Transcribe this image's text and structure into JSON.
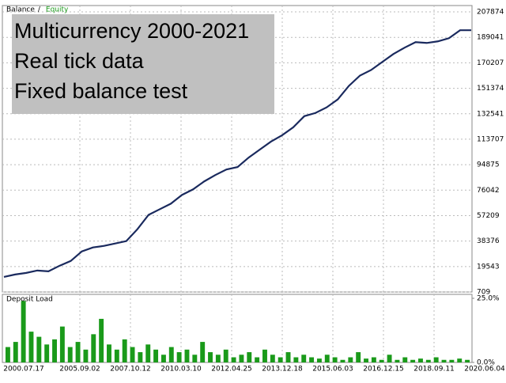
{
  "chart_data": [
    {
      "type": "line",
      "legend": [
        {
          "name": "Balance",
          "color": "#000000"
        },
        {
          "name": "Equity",
          "color": "#1a9a1a"
        }
      ],
      "legend_separator": "/",
      "annotation": [
        "Multicurrency 2000-2021",
        "Real tick data",
        "Fixed balance test"
      ],
      "series": [
        {
          "name": "Balance",
          "color": "#1a2a5e",
          "values": [
            11891,
            13656,
            14833,
            16599,
            16010,
            20130,
            23661,
            30723,
            33665,
            34842,
            36608,
            38373,
            47201,
            57794,
            61913,
            66033,
            72506,
            76626,
            82511,
            87219,
            91338,
            93104,
            100166,
            106051,
            111936,
            116644,
            122529,
            130768,
            133122,
            137241,
            143126,
            153131,
            160781,
            164901,
            170786,
            176671,
            181379,
            185498,
            184910,
            186087,
            188441,
            194326,
            194326
          ]
        }
      ],
      "ylim": [
        709,
        212582
      ],
      "yticks": [
        709,
        19543,
        38376,
        57209,
        76042,
        94875,
        113707,
        132541,
        151374,
        170207,
        189041,
        207874
      ],
      "grid": true
    },
    {
      "type": "bar",
      "title": "Deposit Load",
      "color": "#1a9a1a",
      "x_labels": [
        "2000.07.17",
        "2005.09.02",
        "2007.10.12",
        "2010.03.10",
        "2012.04.25",
        "2013.12.18",
        "2015.06.03",
        "2016.12.15",
        "2018.09.11",
        "2020.06.04"
      ],
      "values": [
        6,
        8,
        24,
        12,
        10,
        7,
        9,
        14,
        6,
        8,
        5,
        11,
        17,
        7,
        5,
        9,
        6,
        4,
        7,
        5,
        3,
        6,
        4,
        5,
        3,
        8,
        4,
        3,
        5,
        2,
        3,
        4,
        2,
        5,
        3,
        2,
        4,
        2,
        3,
        2,
        1.5,
        3,
        2,
        1,
        2,
        4,
        1.5,
        2,
        1,
        3,
        1,
        2,
        1,
        1.5,
        1,
        2,
        1,
        1,
        1.5,
        1
      ],
      "ylim": [
        0,
        25
      ],
      "yticks": [
        {
          "value": 0,
          "label": "0.0%"
        },
        {
          "value": 25,
          "label": "25.0%"
        }
      ]
    }
  ]
}
